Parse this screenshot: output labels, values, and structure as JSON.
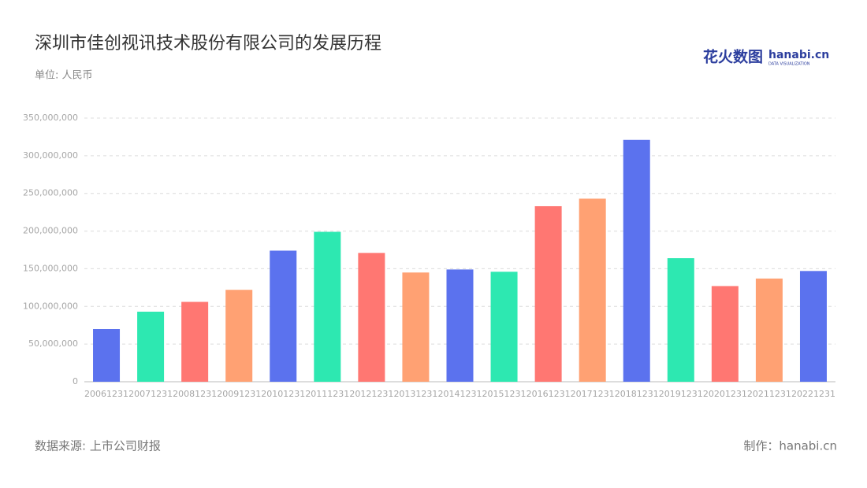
{
  "chart_data": {
    "type": "bar",
    "title": "深圳市佳创视讯技术股份有限公司的发展历程",
    "subtitle": "单位: 人民币",
    "source": "数据来源: 上市公司财报",
    "credit": "制作：hanabi.cn",
    "logo": {
      "name": "花火数图",
      "brand": "hanabi.cn",
      "tagline": "DATA VISUALIZATION"
    },
    "categories": [
      "20061231",
      "20071231",
      "20081231",
      "20091231",
      "20101231",
      "20111231",
      "20121231",
      "20131231",
      "20141231",
      "20151231",
      "20161231",
      "20171231",
      "20181231",
      "20191231",
      "20201231",
      "20211231",
      "20221231"
    ],
    "values": [
      70000000,
      93000000,
      106000000,
      122000000,
      174000000,
      199000000,
      171000000,
      145000000,
      149000000,
      146000000,
      233000000,
      243000000,
      321000000,
      164000000,
      127000000,
      137000000,
      147000000
    ],
    "colors": [
      "#5b72ee",
      "#2de8b1",
      "#ff7772",
      "#ffa173"
    ],
    "ylim": [
      0,
      350000000
    ],
    "yticks": [
      0,
      {
        "value": 50000000,
        "label": "50,000,000"
      },
      {
        "value": 100000000,
        "label": "100,000,000"
      },
      {
        "value": 150000000,
        "label": "150,000,000"
      },
      {
        "value": 200000000,
        "label": "200,000,000"
      },
      {
        "value": 250000000,
        "label": "250,000,000"
      },
      {
        "value": 300000000,
        "label": "300,000,000"
      },
      {
        "value": 350000000,
        "label": "350,000,000"
      }
    ],
    "grid": true
  }
}
